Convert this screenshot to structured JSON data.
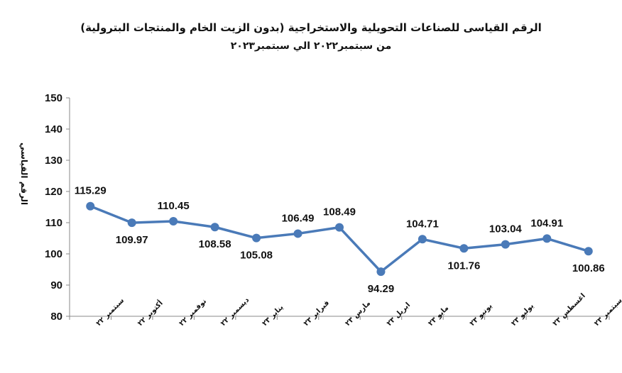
{
  "chart_data": {
    "type": "line",
    "title": "الرقم القياسى للصناعات التحويلية والاستخراجية (بدون الزيت الخام والمنتجات البترولية)",
    "subtitle": "من سبتمبر٢٠٢٢ الي سبتمبر٢٠٢٣",
    "ylabel": "الرقم القياسي",
    "xlabel": "",
    "ylim": [
      80,
      150
    ],
    "yticks": [
      80,
      90,
      100,
      110,
      120,
      130,
      140,
      150
    ],
    "categories": [
      "سبتمبر ٢٢",
      "أكتوبر ٢٢",
      "نوفمبر ٢٢",
      "ديسمبر ٢٢",
      "يناير ٢٣",
      "فبراير ٢٣",
      "مارس ٢٣",
      "ابريل ٢٣",
      "مايو ٢٣",
      "يونيو ٢٣",
      "يوليو ٢٣",
      "اغسطس ٢٣",
      "سبتمبر ٢٣"
    ],
    "values": [
      115.29,
      109.97,
      110.45,
      108.58,
      105.08,
      106.49,
      108.49,
      94.29,
      104.71,
      101.76,
      103.04,
      104.91,
      100.86
    ],
    "value_labels": [
      "115.29",
      "109.97",
      "110.45",
      "108.58",
      "105.08",
      "106.49",
      "108.49",
      "94.29",
      "104.71",
      "101.76",
      "103.04",
      "104.91",
      "100.86"
    ],
    "label_positions": [
      "above",
      "below",
      "above",
      "below",
      "below",
      "above",
      "above",
      "below",
      "above",
      "below",
      "above",
      "above",
      "below"
    ],
    "grid": false,
    "line_color": "#4a7ab8"
  }
}
